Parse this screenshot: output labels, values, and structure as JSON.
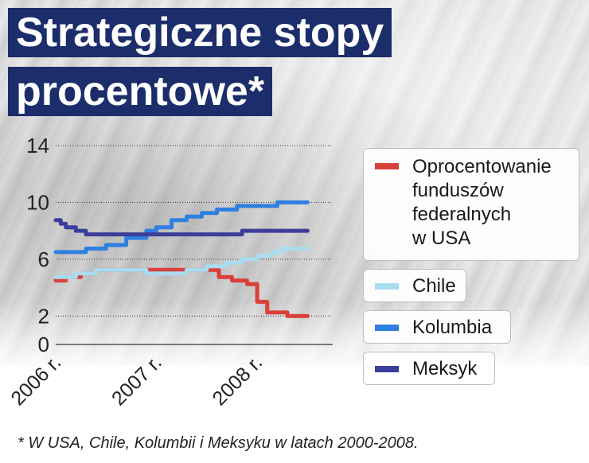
{
  "title": "Strategiczne stopy procentowe*",
  "title_lines": [
    "Strategiczne stopy",
    "procentowe*"
  ],
  "footnote": "* W USA, Chile, Kolumbii i Meksyku w latach 2000-2008.",
  "chart_data": {
    "type": "line",
    "title": "Strategiczne stopy procentowe*",
    "xlabel": "",
    "ylabel": "",
    "xlim": [
      2006.0,
      2008.75
    ],
    "ylim": [
      0,
      14
    ],
    "y_ticks": [
      0,
      2,
      6,
      10,
      14
    ],
    "x_ticks": [
      {
        "value": 2006.0,
        "label": "2006 r."
      },
      {
        "value": 2007.0,
        "label": "2007 r."
      },
      {
        "value": 2008.0,
        "label": "2008 r."
      }
    ],
    "grid": "horizontal dotted",
    "legend_position": "right",
    "series": [
      {
        "name": "Oprocentowanie funduszów federalnych w USA",
        "color": "#d9403a",
        "points": [
          [
            2006.0,
            4.5
          ],
          [
            2006.1,
            4.75
          ],
          [
            2006.25,
            5.0
          ],
          [
            2006.4,
            5.25
          ],
          [
            2006.5,
            5.25
          ],
          [
            2007.0,
            5.25
          ],
          [
            2007.5,
            5.25
          ],
          [
            2007.62,
            4.75
          ],
          [
            2007.75,
            4.5
          ],
          [
            2007.9,
            4.25
          ],
          [
            2008.0,
            3.0
          ],
          [
            2008.1,
            2.25
          ],
          [
            2008.3,
            2.0
          ],
          [
            2008.5,
            2.0
          ]
        ]
      },
      {
        "name": "Chile",
        "color": "#a9dcef",
        "points": [
          [
            2006.0,
            4.75
          ],
          [
            2006.2,
            5.0
          ],
          [
            2006.4,
            5.25
          ],
          [
            2006.6,
            5.25
          ],
          [
            2006.9,
            5.0
          ],
          [
            2007.3,
            5.25
          ],
          [
            2007.5,
            5.5
          ],
          [
            2007.7,
            5.75
          ],
          [
            2007.85,
            6.0
          ],
          [
            2008.0,
            6.25
          ],
          [
            2008.15,
            6.5
          ],
          [
            2008.25,
            6.75
          ],
          [
            2008.4,
            6.75
          ],
          [
            2008.5,
            6.75
          ]
        ]
      },
      {
        "name": "Kolumbia",
        "color": "#2f7fe0",
        "points": [
          [
            2006.0,
            6.5
          ],
          [
            2006.3,
            6.75
          ],
          [
            2006.5,
            7.0
          ],
          [
            2006.7,
            7.5
          ],
          [
            2006.9,
            8.0
          ],
          [
            2007.0,
            8.25
          ],
          [
            2007.15,
            8.75
          ],
          [
            2007.3,
            9.0
          ],
          [
            2007.45,
            9.25
          ],
          [
            2007.6,
            9.5
          ],
          [
            2007.8,
            9.75
          ],
          [
            2008.0,
            9.75
          ],
          [
            2008.2,
            10.0
          ],
          [
            2008.5,
            10.0
          ]
        ]
      },
      {
        "name": "Meksyk",
        "color": "#3b3e9a",
        "points": [
          [
            2006.0,
            8.75
          ],
          [
            2006.05,
            8.5
          ],
          [
            2006.1,
            8.25
          ],
          [
            2006.2,
            8.0
          ],
          [
            2006.3,
            7.75
          ],
          [
            2006.5,
            7.75
          ],
          [
            2007.0,
            7.75
          ],
          [
            2007.3,
            7.75
          ],
          [
            2007.5,
            7.75
          ],
          [
            2007.85,
            8.0
          ],
          [
            2008.0,
            8.0
          ],
          [
            2008.3,
            8.0
          ],
          [
            2008.5,
            8.0
          ]
        ]
      }
    ]
  },
  "legend": [
    {
      "label": "Oprocentowanie funduszów federalnych w USA",
      "lines": [
        "Oprocentowanie",
        "funduszów",
        "federalnych",
        "w USA"
      ],
      "color": "#d9403a"
    },
    {
      "label": "Chile",
      "lines": [
        "Chile"
      ],
      "color": "#a9dcef"
    },
    {
      "label": "Kolumbia",
      "lines": [
        "Kolumbia"
      ],
      "color": "#2f7fe0"
    },
    {
      "label": "Meksyk",
      "lines": [
        "Meksyk"
      ],
      "color": "#3b3e9a"
    }
  ]
}
